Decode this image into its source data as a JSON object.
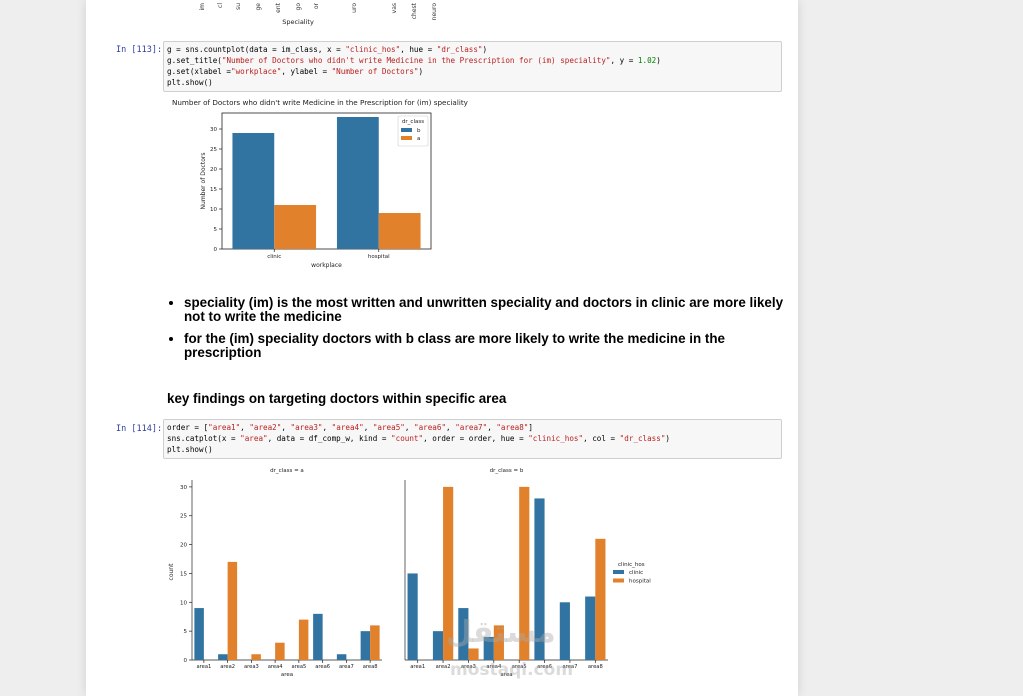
{
  "top_fragment": {
    "xlabel": "Speciality",
    "tick_labels": [
      "im",
      "cl",
      "su",
      "ge",
      "ent",
      "go",
      "or",
      "",
      "uro",
      "",
      "vas",
      "chest",
      "neuro"
    ]
  },
  "cells": [
    {
      "prompt": "In [113]:",
      "code_lines": [
        [
          {
            "t": "g = sns.countplot(data = im_class, x = ",
            "c": ""
          },
          {
            "t": "\"clinic_hos\"",
            "c": "str"
          },
          {
            "t": ", hue = ",
            "c": ""
          },
          {
            "t": "\"dr_class\"",
            "c": "str"
          },
          {
            "t": ")",
            "c": ""
          }
        ],
        [
          {
            "t": "g.set_title(",
            "c": ""
          },
          {
            "t": "\"Number of Doctors who didn't write Medicine in the Prescription for (im) speciality\"",
            "c": "str"
          },
          {
            "t": ", y = ",
            "c": ""
          },
          {
            "t": "1.02",
            "c": "num"
          },
          {
            "t": ")",
            "c": ""
          }
        ],
        [
          {
            "t": "g.set(xlabel =",
            "c": ""
          },
          {
            "t": "\"workplace\"",
            "c": "str"
          },
          {
            "t": ", ylabel = ",
            "c": ""
          },
          {
            "t": "\"Number of Doctors\"",
            "c": "str"
          },
          {
            "t": ")",
            "c": ""
          }
        ],
        [
          {
            "t": "plt.show()",
            "c": ""
          }
        ]
      ]
    },
    {
      "prompt": "In [114]:",
      "code_lines": [
        [
          {
            "t": "order = [",
            "c": ""
          },
          {
            "t": "\"area1\"",
            "c": "str"
          },
          {
            "t": ", ",
            "c": ""
          },
          {
            "t": "\"area2\"",
            "c": "str"
          },
          {
            "t": ", ",
            "c": ""
          },
          {
            "t": "\"area3\"",
            "c": "str"
          },
          {
            "t": ", ",
            "c": ""
          },
          {
            "t": "\"area4\"",
            "c": "str"
          },
          {
            "t": ", ",
            "c": ""
          },
          {
            "t": "\"area5\"",
            "c": "str"
          },
          {
            "t": ", ",
            "c": ""
          },
          {
            "t": "\"area6\"",
            "c": "str"
          },
          {
            "t": ", ",
            "c": ""
          },
          {
            "t": "\"area7\"",
            "c": "str"
          },
          {
            "t": ", ",
            "c": ""
          },
          {
            "t": "\"area8\"",
            "c": "str"
          },
          {
            "t": "]",
            "c": ""
          }
        ],
        [
          {
            "t": "sns.catplot(x = ",
            "c": ""
          },
          {
            "t": "\"area\"",
            "c": "str"
          },
          {
            "t": ", data = df_comp_w, kind = ",
            "c": ""
          },
          {
            "t": "\"count\"",
            "c": "str"
          },
          {
            "t": ", order = order, hue = ",
            "c": ""
          },
          {
            "t": "\"clinic_hos\"",
            "c": "str"
          },
          {
            "t": ", col = ",
            "c": ""
          },
          {
            "t": "\"dr_class\"",
            "c": "str"
          },
          {
            "t": ")",
            "c": ""
          }
        ],
        [
          {
            "t": "plt.show()",
            "c": ""
          }
        ]
      ]
    }
  ],
  "bullets": [
    "speciality (im) is the most written and unwritten speciality and doctors in clinic are more likely not to write the medicine",
    "for the (im) speciality doctors with b class are more likely to write the medicine in the prescription"
  ],
  "heading": "key findings on targeting doctors within specific area",
  "watermark": {
    "text": "مستقل",
    "url": "mostaqi.com"
  },
  "colors": {
    "blue": "#3274a1",
    "orange": "#e1812c"
  },
  "chart_data": [
    {
      "type": "bar",
      "title": "Number of Doctors who didn't write Medicine in the Prescription for (im) speciality",
      "xlabel": "workplace",
      "ylabel": "Number of Doctors",
      "categories": [
        "clinic",
        "hospital"
      ],
      "series": [
        {
          "name": "b",
          "color": "#3274a1",
          "values": [
            29,
            33
          ]
        },
        {
          "name": "a",
          "color": "#e1812c",
          "values": [
            11,
            9
          ]
        }
      ],
      "legend_title": "dr_class",
      "legend_position": "top-right",
      "ylim": [
        0,
        34
      ],
      "yticks": [
        0,
        5,
        10,
        15,
        20,
        25,
        30
      ]
    },
    {
      "type": "bar",
      "facet": "dr_class",
      "xlabel": "area",
      "ylabel": "count",
      "categories": [
        "area1",
        "area2",
        "area3",
        "area4",
        "area5",
        "area6",
        "area7",
        "area8"
      ],
      "legend_title": "clinic_hos",
      "legend_position": "right",
      "legend": [
        {
          "name": "clinic",
          "color": "#3274a1"
        },
        {
          "name": "hospital",
          "color": "#e1812c"
        }
      ],
      "ylim": [
        0,
        30.5
      ],
      "yticks": [
        0,
        5,
        10,
        15,
        20,
        25,
        30
      ],
      "panels": [
        {
          "title": "dr_class = a",
          "series": [
            {
              "name": "clinic",
              "color": "#3274a1",
              "values": [
                9,
                1,
                0,
                0,
                0,
                8,
                1,
                5
              ]
            },
            {
              "name": "hospital",
              "color": "#e1812c",
              "values": [
                0,
                17,
                1,
                3,
                7,
                0,
                0,
                6
              ]
            }
          ]
        },
        {
          "title": "dr_class = b",
          "series": [
            {
              "name": "clinic",
              "color": "#3274a1",
              "values": [
                15,
                5,
                9,
                4,
                0,
                28,
                10,
                11
              ]
            },
            {
              "name": "hospital",
              "color": "#e1812c",
              "values": [
                0,
                30,
                2,
                6,
                30,
                0,
                0,
                21
              ]
            }
          ]
        }
      ]
    }
  ]
}
